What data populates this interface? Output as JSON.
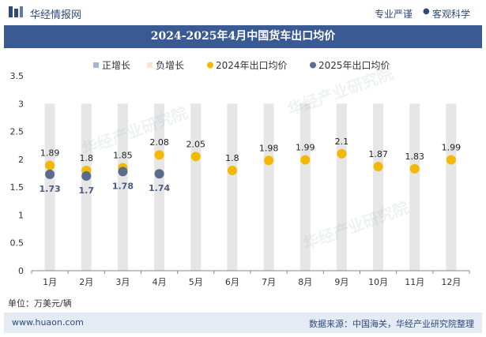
{
  "header": {
    "brand": "华经情报网",
    "tag_left": "专业严谨",
    "tag_dot": "●",
    "tag_right": "客观科学"
  },
  "chart_title": "2024-2025年4月中国货车出口均价",
  "unit_label": "单位：万美元/辆",
  "footer": {
    "site": "www.huaon.com",
    "source": "数据来源：中国海关，华经产业研究院整理"
  },
  "watermarks": [
    "华经产业研究院",
    "华经产业研究院",
    "华经产业研究院"
  ],
  "colors": {
    "title_bg": "#3a5a94",
    "series_2024": "#f5b800",
    "series_2025": "#5a6b8c",
    "bar_bg": "#e6e6e6",
    "pos_bar": "#a9b7cc",
    "neg_bar": "#f5e9c8"
  },
  "chart_data": {
    "type": "scatter",
    "categories": [
      "1月",
      "2月",
      "3月",
      "4月",
      "5月",
      "6月",
      "7月",
      "8月",
      "9月",
      "10月",
      "11月",
      "12月"
    ],
    "ylim": [
      0,
      3.5
    ],
    "yticks": [
      0,
      0.5,
      1,
      1.5,
      2,
      2.5,
      3,
      3.5
    ],
    "legend": [
      "正增长",
      "负增长",
      "2024年出口均价",
      "2025年出口均价"
    ],
    "series": [
      {
        "name": "2024年出口均价",
        "values": [
          1.89,
          1.8,
          1.85,
          2.08,
          2.05,
          1.8,
          1.98,
          1.99,
          2.1,
          1.87,
          1.83,
          1.99
        ],
        "labels": [
          "1.89",
          "1.8",
          "1.85",
          "2.08",
          "2.05",
          "1.8",
          "1.98",
          "1.99",
          "2.1",
          "1.87",
          "1.83",
          "1.99"
        ]
      },
      {
        "name": "2025年出口均价",
        "values": [
          1.73,
          1.7,
          1.78,
          1.74
        ],
        "labels": [
          "1.73",
          "1.7",
          "1.78",
          "1.74"
        ]
      }
    ],
    "background_bar_value": 3
  }
}
